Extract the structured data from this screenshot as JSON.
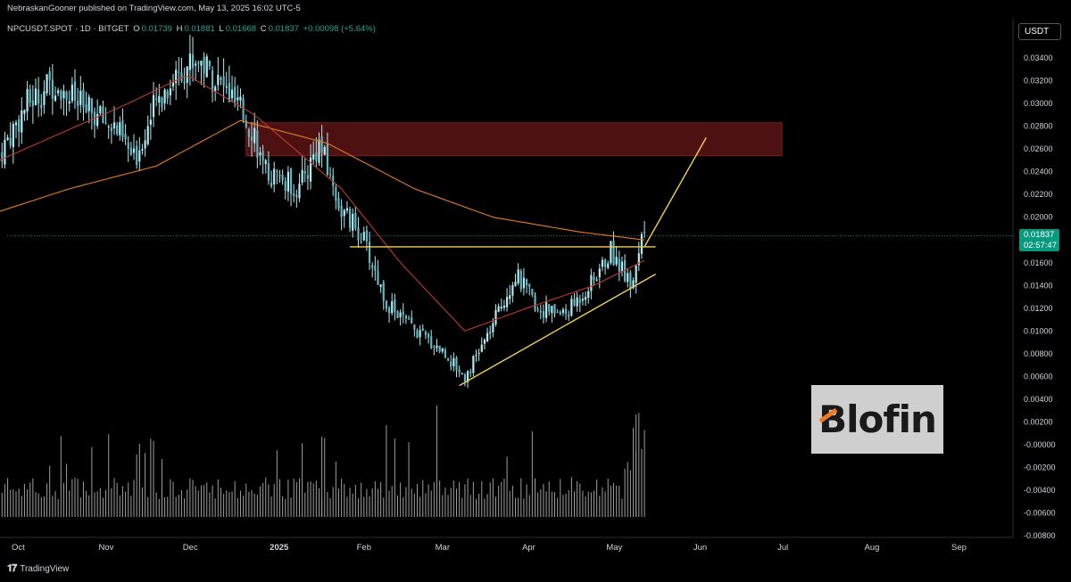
{
  "header": {
    "publisher": "NebraskanGooner published on TradingView.com, May 13, 2025 16:02 UTC-5"
  },
  "legend": {
    "symbol": "NPCUSDT.SPOT · 1D · BITGET",
    "open_label": "O",
    "open": "0.01739",
    "high_label": "H",
    "high": "0.01881",
    "low_label": "L",
    "low": "0.01668",
    "close_label": "C",
    "close": "0.01837",
    "change": "+0.00098 (+5.64%)"
  },
  "currency": "USDT",
  "price_tag": {
    "price": "0.01837",
    "countdown": "02:57:47"
  },
  "logo": {
    "text": "Blofin"
  },
  "footer": {
    "brand": "TradingView",
    "icon": "tradingview-logo-icon"
  },
  "colors": {
    "up": "#26a69a",
    "down": "#ef5350",
    "candle": "#b2ebf2",
    "volume": "#9e9e9e",
    "ema_long": "#e67e22",
    "ema_short": "#c0392b",
    "trendline": "#f0d050",
    "zone": "#5a1414"
  },
  "chart_data": {
    "type": "candlestick",
    "x_ticks": [
      "Oct",
      "Nov",
      "Dec",
      "2025",
      "Feb",
      "Mar",
      "Apr",
      "May",
      "Jun",
      "Jul",
      "Aug",
      "Sep"
    ],
    "y_ticks": [
      "0.03400",
      "0.03200",
      "0.03000",
      "0.02800",
      "0.02600",
      "0.02400",
      "0.02200",
      "0.02000",
      "0.01600",
      "0.01400",
      "0.01200",
      "0.01000",
      "0.00800",
      "0.00600",
      "0.00400",
      "0.00200",
      "-0.00000",
      "-0.00200",
      "-0.00400",
      "-0.00600",
      "-0.00800"
    ],
    "y_range": [
      -0.0085,
      0.0355
    ],
    "price_path": [
      [
        "2024-09-25",
        0.0255
      ],
      [
        "2024-10-05",
        0.03
      ],
      [
        "2024-10-15",
        0.032
      ],
      [
        "2024-10-25",
        0.0295
      ],
      [
        "2024-11-05",
        0.028
      ],
      [
        "2024-11-12",
        0.025
      ],
      [
        "2024-11-20",
        0.03
      ],
      [
        "2024-11-28",
        0.033
      ],
      [
        "2024-12-05",
        0.034
      ],
      [
        "2024-12-15",
        0.031
      ],
      [
        "2024-12-25",
        0.0275
      ],
      [
        "2024-12-28",
        0.024
      ],
      [
        "2025-01-10",
        0.0225
      ],
      [
        "2025-01-17",
        0.0265
      ],
      [
        "2025-01-25",
        0.0205
      ],
      [
        "2025-02-01",
        0.0185
      ],
      [
        "2025-02-10",
        0.0125
      ],
      [
        "2025-02-20",
        0.01
      ],
      [
        "2025-03-01",
        0.0085
      ],
      [
        "2025-03-10",
        0.006
      ],
      [
        "2025-03-18",
        0.0095
      ],
      [
        "2025-03-28",
        0.015
      ],
      [
        "2025-04-05",
        0.012
      ],
      [
        "2025-04-15",
        0.0115
      ],
      [
        "2025-04-25",
        0.0145
      ],
      [
        "2025-05-01",
        0.017
      ],
      [
        "2025-05-08",
        0.0145
      ],
      [
        "2025-05-13",
        0.0184
      ]
    ],
    "ema_long": [
      [
        "2024-09-25",
        0.0205
      ],
      [
        "2024-10-20",
        0.0225
      ],
      [
        "2024-11-20",
        0.0245
      ],
      [
        "2024-12-20",
        0.0285
      ],
      [
        "2025-01-20",
        0.0265
      ],
      [
        "2025-02-20",
        0.0225
      ],
      [
        "2025-03-20",
        0.02
      ],
      [
        "2025-04-20",
        0.0187
      ],
      [
        "2025-05-13",
        0.018
      ]
    ],
    "ema_short": [
      [
        "2024-09-25",
        0.025
      ],
      [
        "2024-11-10",
        0.03
      ],
      [
        "2024-12-01",
        0.0325
      ],
      [
        "2024-12-25",
        0.029
      ],
      [
        "2025-01-25",
        0.0225
      ],
      [
        "2025-02-15",
        0.016
      ],
      [
        "2025-03-10",
        0.01
      ],
      [
        "2025-04-01",
        0.012
      ],
      [
        "2025-04-25",
        0.014
      ],
      [
        "2025-05-13",
        0.0162
      ]
    ],
    "annotations": {
      "resistance_zone": {
        "from": "2024-12-22",
        "to": "2025-07-01",
        "low": 0.0254,
        "high": 0.0283
      },
      "horizontal_line": {
        "from": "2025-01-28",
        "to": "2025-05-17",
        "price": 0.0174
      },
      "ascending_trendline": {
        "from": [
          "2025-03-08",
          0.0052
        ],
        "to": [
          "2025-05-17",
          0.015
        ]
      },
      "projection_arrow": {
        "from": [
          "2025-05-13",
          0.0174
        ],
        "to": [
          "2025-06-04",
          0.027
        ]
      }
    },
    "volume_range": [
      0,
      1
    ],
    "grid": false,
    "legend": "top-left"
  }
}
